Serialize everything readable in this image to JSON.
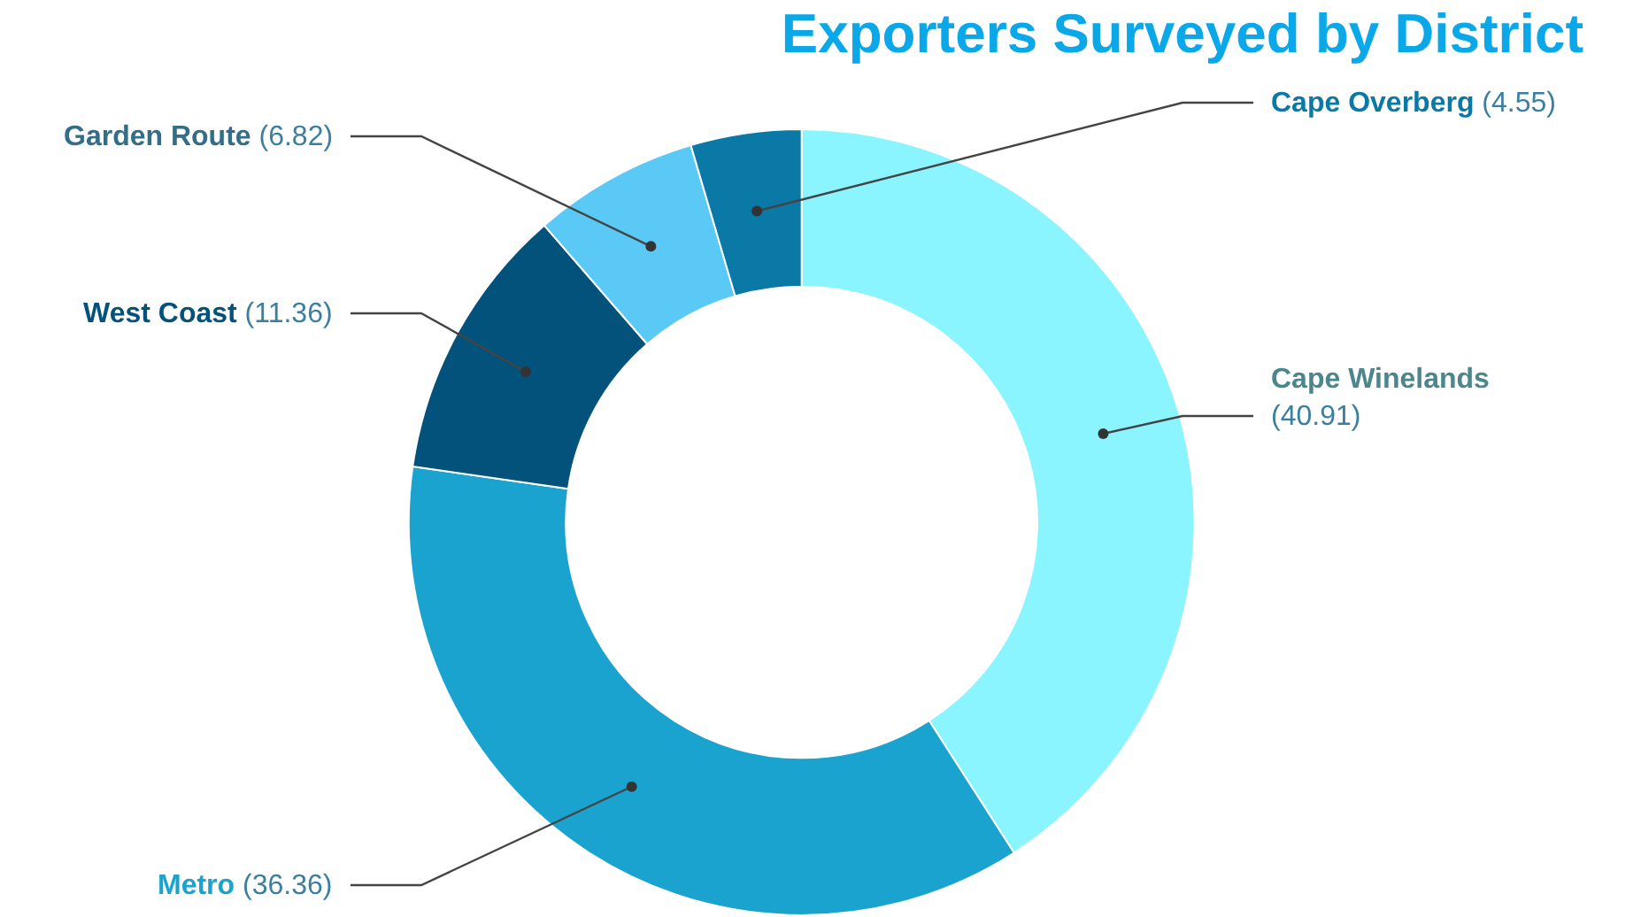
{
  "chart_data": {
    "type": "donut",
    "title": "Exporters Surveyed by District",
    "categories": [
      "Cape Winelands",
      "Metro",
      "West Coast",
      "Garden Route",
      "Cape Overberg"
    ],
    "values": [
      40.91,
      36.36,
      11.36,
      6.82,
      4.55
    ],
    "colors": [
      "#8af4ff",
      "#1ba3cf",
      "#03527b",
      "#5bc9f6",
      "#0a79a5"
    ],
    "value_labels": [
      "(40.91)",
      "(36.36)",
      "(11.36)",
      "(6.82)",
      "(4.55)"
    ],
    "legend": false
  }
}
